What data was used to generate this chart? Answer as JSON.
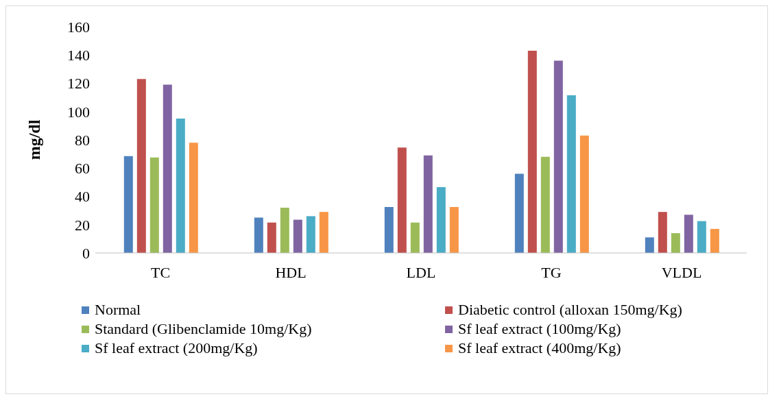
{
  "chart_data": {
    "type": "bar",
    "ylabel": "mg/dl",
    "categories": [
      "TC",
      "HDL",
      "LDL",
      "TG",
      "VLDL"
    ],
    "series": [
      {
        "name": "Normal",
        "color": "#4f81bd",
        "values": [
          68.5,
          25,
          32.5,
          56,
          11
        ]
      },
      {
        "name": "Diabetic control (alloxan 150mg/Kg)",
        "color": "#c0504d",
        "values": [
          123,
          21.5,
          74.5,
          143,
          29
        ]
      },
      {
        "name": "Standard (Glibenclamide 10mg/Kg)",
        "color": "#9bbb59",
        "values": [
          67.5,
          32,
          21.5,
          68,
          14
        ]
      },
      {
        "name": "Sf leaf extract (100mg/Kg)",
        "color": "#8064a2",
        "values": [
          119,
          23.5,
          69,
          136,
          27
        ]
      },
      {
        "name": "Sf leaf extract (200mg/Kg)",
        "color": "#4bacc6",
        "values": [
          95,
          26,
          46.5,
          111.5,
          22.5
        ]
      },
      {
        "name": "Sf leaf extract (400mg/Kg)",
        "color": "#f79646",
        "values": [
          78,
          29,
          32.5,
          83,
          17
        ]
      }
    ],
    "ylim": [
      0,
      160
    ],
    "yticks": [
      0,
      20,
      40,
      60,
      80,
      100,
      120,
      140,
      160
    ],
    "grid": false,
    "legend": "bottom"
  }
}
